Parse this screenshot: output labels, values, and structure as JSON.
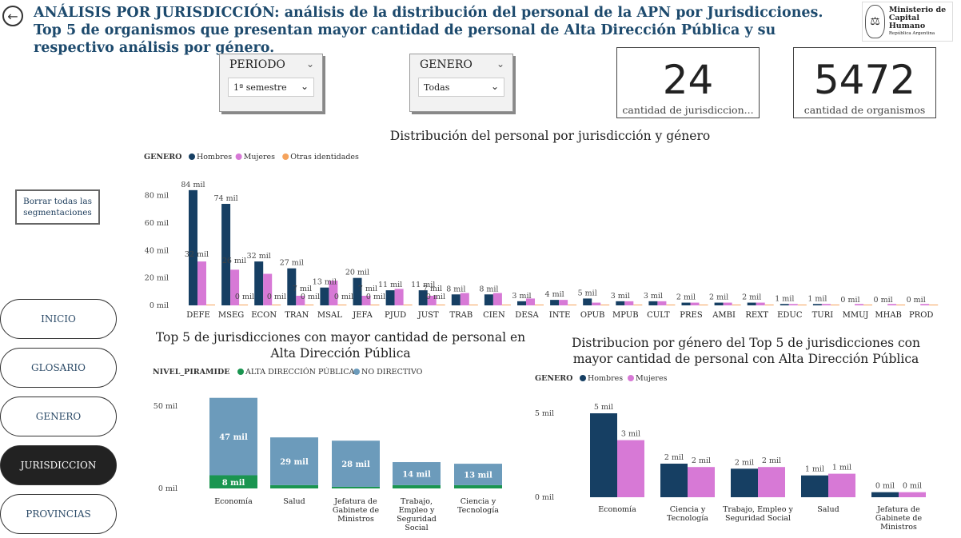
{
  "header": {
    "title": "ANÁLISIS POR JURISDICCIÓN: análisis de la distribución del personal de la APN por Jurisdicciones. Top 5 de organismos que presentan mayor cantidad de personal de Alta Dirección Pública y su respectivo análisis por género.",
    "logo_line1": "Ministerio de",
    "logo_line2": "Capital Humano",
    "logo_line3": "República Argentina"
  },
  "filters": {
    "periodo_label": "PERIODO",
    "periodo_value": "1ª semestre",
    "genero_label": "GENERO",
    "genero_value": "Todas"
  },
  "cards": {
    "jurisdicciones_value": "24",
    "jurisdicciones_label": "cantidad de jurisdiccion...",
    "organismos_value": "5472",
    "organismos_label": "cantidad de organismos"
  },
  "clear_button": "Borrar todas las segmentaciones",
  "nav": {
    "items": [
      "INICIO",
      "GLOSARIO",
      "GENERO",
      "JURISDICCION",
      "PROVINCIAS"
    ],
    "active": "JURISDICCION"
  },
  "colors": {
    "hombres": "#163f63",
    "mujeres": "#d779d6",
    "otras": "#f5a35c",
    "alta": "#1a9550",
    "nodir": "#6c9bbb"
  },
  "chart_data": [
    {
      "type": "bar",
      "title": "Distribución del personal por jurisdicción y género",
      "legend_title": "GENERO",
      "legend_position": "top-left",
      "categories": [
        "DEFE",
        "MSEG",
        "ECON",
        "TRAN",
        "MSAL",
        "JEFA",
        "PJUD",
        "JUST",
        "TRAB",
        "CIEN",
        "DESA",
        "INTE",
        "OPUB",
        "MPUB",
        "CULT",
        "PRES",
        "AMBI",
        "REXT",
        "EDUC",
        "TURI",
        "MMUJ",
        "MHAB",
        "PROD"
      ],
      "series": [
        {
          "name": "Hombres",
          "values": [
            84,
            74,
            32,
            27,
            13,
            20,
            11,
            11,
            8,
            8,
            3,
            4,
            5,
            3,
            3,
            2,
            2,
            2,
            1,
            1,
            0,
            0,
            0
          ]
        },
        {
          "name": "Mujeres",
          "values": [
            32,
            26,
            23,
            7,
            18,
            7,
            12,
            7,
            9,
            9,
            5,
            4,
            2,
            3,
            3,
            2,
            2,
            2,
            1,
            1,
            1,
            1,
            1
          ]
        },
        {
          "name": "Otras identidades",
          "values": [
            0,
            0,
            0,
            0,
            0,
            0,
            0,
            0,
            0,
            0,
            0,
            0,
            0,
            0,
            0,
            0,
            0,
            0,
            0,
            0,
            0,
            0,
            0
          ]
        }
      ],
      "data_labels": [
        "84 mil",
        "74 mil",
        "32 mil",
        "27 mil",
        "13 mil",
        "20 mil",
        "11 mil",
        "11 mil",
        "8 mil",
        "8 mil",
        "3 mil",
        "4 mil",
        "5 mil",
        "3 mil",
        "3 mil",
        "2 mil",
        "2 mil",
        "2 mil",
        "1 mil",
        "1 mil",
        "0 mil",
        "0 mil",
        "0 mil"
      ],
      "extra_labels": [
        {
          "cat": "DEFE",
          "text": "32 mil"
        },
        {
          "cat": "MSEG",
          "text": "26 mil"
        },
        {
          "cat": "MSEG",
          "text": "0 mil"
        },
        {
          "cat": "ECON",
          "text": "0 mil"
        },
        {
          "cat": "TRAN",
          "text": "7 mil"
        },
        {
          "cat": "TRAN",
          "text": "0 mil"
        },
        {
          "cat": "MSAL",
          "text": "0 mil"
        },
        {
          "cat": "JEFA",
          "text": "7 mil"
        },
        {
          "cat": "JEFA",
          "text": "0 mil"
        },
        {
          "cat": "JUST",
          "text": "7 mil"
        },
        {
          "cat": "JUST",
          "text": "0 mil"
        }
      ],
      "yticks": [
        "0 mil",
        "20 mil",
        "40 mil",
        "60 mil",
        "80 mil"
      ],
      "ylim": [
        0,
        88
      ]
    },
    {
      "type": "bar",
      "stacked": true,
      "title": "Top 5 de jurisdicciones con mayor cantidad de personal en Alta Dirección Pública",
      "legend_title": "NIVEL_PIRAMIDE",
      "legend_position": "top-left",
      "categories": [
        "Economía",
        "Salud",
        "Jefatura de Gabinete de Ministros",
        "Trabajo, Empleo y Seguridad Social",
        "Ciencia y Tecnología"
      ],
      "series": [
        {
          "name": "ALTA DIRECCIÓN PÚBLICA",
          "values": [
            8,
            2,
            1,
            2,
            2
          ],
          "labels": [
            "8 mil",
            "",
            "",
            "",
            ""
          ]
        },
        {
          "name": "NO DIRECTIVO",
          "values": [
            47,
            29,
            28,
            14,
            13
          ],
          "labels": [
            "47 mil",
            "29 mil",
            "28 mil",
            "14 mil",
            "13 mil"
          ]
        }
      ],
      "yticks": [
        "0 mil",
        "50 mil"
      ],
      "ylim": [
        0,
        60
      ]
    },
    {
      "type": "bar",
      "title": "Distribucion por género del Top 5 de jurisdicciones con mayor cantidad de personal con Alta Dirección Pública",
      "legend_title": "GENERO",
      "legend_position": "top-left",
      "categories": [
        "Economía",
        "Ciencia y Tecnología",
        "Trabajo, Empleo y Seguridad Social",
        "Salud",
        "Jefatura de Gabinete de Ministros"
      ],
      "series": [
        {
          "name": "Hombres",
          "values": [
            5.0,
            2.0,
            1.7,
            1.3,
            0.3
          ],
          "labels": [
            "5 mil",
            "2 mil",
            "2 mil",
            "1 mil",
            "0 mil"
          ]
        },
        {
          "name": "Mujeres",
          "values": [
            3.4,
            1.8,
            1.8,
            1.4,
            0.3
          ],
          "labels": [
            "3 mil",
            "2 mil",
            "2 mil",
            "1 mil",
            "0 mil"
          ]
        }
      ],
      "yticks": [
        "0 mil",
        "5 mil"
      ],
      "ylim": [
        0,
        6
      ]
    }
  ]
}
